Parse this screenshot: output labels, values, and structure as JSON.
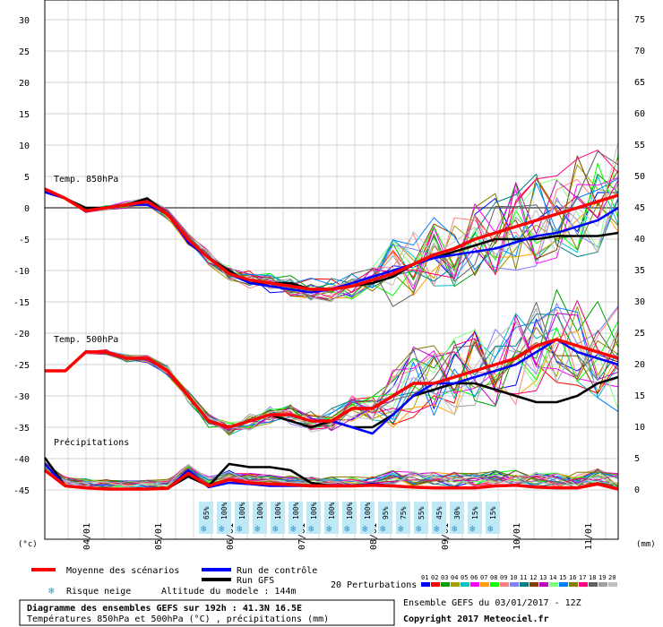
{
  "chart_data": {
    "type": "line",
    "left_axis": {
      "unit_label": "(°c)",
      "ticks": [
        "30",
        "25",
        "20",
        "15",
        "10",
        "5",
        "0",
        "-5",
        "-10",
        "-15",
        "-20",
        "-25",
        "-30",
        "-35",
        "-40",
        "-45"
      ]
    },
    "right_axis": {
      "unit_label": "(mm)",
      "ticks": [
        "75",
        "70",
        "65",
        "60",
        "55",
        "50",
        "45",
        "40",
        "35",
        "30",
        "25",
        "20",
        "15",
        "10",
        "5",
        "0"
      ]
    },
    "x_axis": {
      "ticks": [
        "04/01",
        "05/01",
        "06/01",
        "07/01",
        "08/01",
        "09/01",
        "10/01",
        "11/01"
      ]
    },
    "panel_labels": {
      "t850": "Temp. 850hPa",
      "t500": "Temp. 500hPa",
      "precip": "Précipitations"
    },
    "snow_risk": [
      "65%",
      "100%",
      "100%",
      "100%",
      "100%",
      "100%",
      "100%",
      "100%",
      "100%",
      "100%",
      "95%",
      "75%",
      "55%",
      "45%",
      "30%",
      "15%",
      "15%"
    ],
    "legend": {
      "mean": "Moyenne des scénarios",
      "control": "Run de contrôle",
      "gfs": "Run GFS",
      "perturbations_label": "20 Perturbations",
      "perturbation_ids": [
        "01",
        "02",
        "03",
        "04",
        "05",
        "06",
        "07",
        "08",
        "09",
        "10",
        "11",
        "12",
        "13",
        "14",
        "15",
        "16",
        "17",
        "18",
        "19",
        "20"
      ],
      "perturbation_colors": [
        "#0000ff",
        "#ff0000",
        "#00a000",
        "#a0a000",
        "#00c0c0",
        "#ff00ff",
        "#ffa000",
        "#00ff00",
        "#ff8080",
        "#8080ff",
        "#008080",
        "#804000",
        "#c000c0",
        "#80ff80",
        "#0080ff",
        "#808000",
        "#ff0080",
        "#606060",
        "#a0a0a0",
        "#c0c0c0"
      ],
      "snow_risk": "Risque neige",
      "altitude": "Altitude du modele : 144m"
    },
    "title": "Diagramme des ensembles GEFS sur 192h : 41.3N 16.5E",
    "subtitle": "Températures 850hPa et 500hPa (°C) , précipitations (mm)",
    "run_info": "Ensemble GEFS du 03/01/2017 - 12Z",
    "copyright": "Copyright 2017 Meteociel.fr",
    "t850": {
      "mean": [
        3,
        1.5,
        -0.5,
        0,
        0.5,
        1,
        -1,
        -5,
        -8,
        -10.5,
        -11.5,
        -12,
        -12.5,
        -13,
        -13,
        -12.5,
        -11.5,
        -10.5,
        -9,
        -7.5,
        -6.5,
        -5,
        -4,
        -3,
        -2,
        -1,
        0,
        1,
        2
      ],
      "control": [
        2.5,
        1.5,
        -0.5,
        0,
        0.5,
        0.5,
        -1,
        -5.5,
        -8,
        -10.5,
        -12,
        -12.5,
        -13,
        -13.5,
        -13,
        -12,
        -11,
        -10,
        -9,
        -8,
        -7.5,
        -7,
        -6.5,
        -5.5,
        -4.5,
        -4,
        -3,
        -2,
        0
      ],
      "gfs": [
        3,
        1.5,
        0,
        0,
        0.5,
        1.5,
        -1,
        -5,
        -8,
        -10,
        -12,
        -12,
        -12,
        -13,
        -13,
        -12.5,
        -12,
        -11,
        -9,
        -8,
        -7,
        -6,
        -5,
        -5,
        -5,
        -4.5,
        -4.5,
        -4.5,
        -4
      ]
    },
    "t500": {
      "mean": [
        -26,
        -26,
        -23,
        -23,
        -24,
        -24,
        -26,
        -30,
        -34,
        -35,
        -34,
        -33,
        -33,
        -34,
        -34,
        -32,
        -32,
        -30,
        -28,
        -28,
        -27,
        -26,
        -25,
        -24,
        -22,
        -21,
        -22,
        -23,
        -24
      ],
      "control": [
        -26,
        -26,
        -23,
        -23,
        -24,
        -24,
        -26,
        -30,
        -34,
        -35,
        -34,
        -33,
        -33,
        -34,
        -34,
        -35,
        -36,
        -33,
        -30,
        -28,
        -28,
        -27,
        -26,
        -25,
        -23,
        -21,
        -23,
        -24,
        -25
      ],
      "gfs": [
        -26,
        -26,
        -23,
        -23,
        -24,
        -24,
        -26,
        -30,
        -34,
        -35,
        -34,
        -33,
        -34,
        -35,
        -34,
        -35,
        -35,
        -33,
        -30,
        -29,
        -28,
        -28,
        -29,
        -30,
        -31,
        -31,
        -30,
        -28,
        -27
      ]
    },
    "precip": {
      "mean": [
        3,
        0.5,
        0.2,
        0,
        0,
        0,
        0.1,
        2.5,
        0.5,
        1.5,
        1,
        0.8,
        0.7,
        0.5,
        0.5,
        0.5,
        0.6,
        0.5,
        0.3,
        0.2,
        0.2,
        0.2,
        0.5,
        0.6,
        0.3,
        0.2,
        0.2,
        0.8,
        0
      ],
      "control": [
        4,
        0.5,
        0.2,
        0,
        0,
        0,
        0.1,
        3,
        0.3,
        1,
        0.8,
        0.5,
        0.5,
        0.5,
        0.5,
        0.6,
        0.8,
        0.5,
        0.3,
        0.2,
        0.2,
        0.2,
        0.5,
        0.6,
        0.3,
        0.2,
        0.2,
        0.8,
        0
      ],
      "gfs": [
        5,
        0.5,
        0.2,
        0,
        0,
        0,
        0.1,
        2,
        0.5,
        4,
        3.5,
        3.5,
        3,
        1,
        0.5,
        0.5,
        0.8,
        0.5,
        0.3,
        0.2,
        0.2,
        0.2,
        0.5,
        0.6,
        0.3,
        0.2,
        0.2,
        0.8,
        0
      ]
    },
    "steps": 29
  }
}
